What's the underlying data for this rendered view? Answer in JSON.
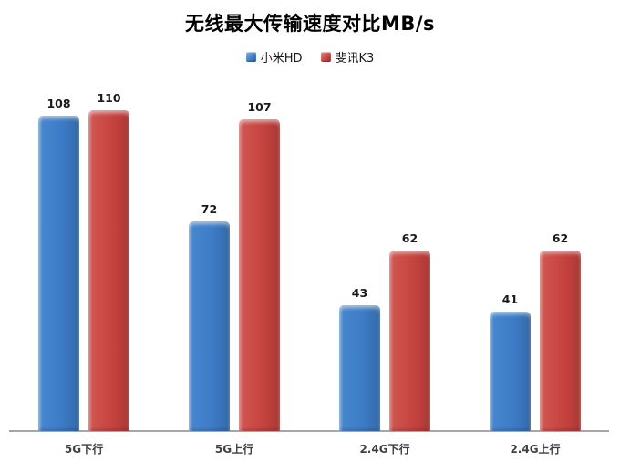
{
  "title": "无线最大传输速度对比MB/s",
  "chart_data": {
    "type": "bar",
    "title": "无线最大传输速度对比MB/s",
    "categories": [
      "5G下行",
      "5G上行",
      "2.4G下行",
      "2.4G上行"
    ],
    "series": [
      {
        "name": "小米HD",
        "color": "#3e7cc7",
        "values": [
          108,
          72,
          43,
          41
        ]
      },
      {
        "name": "斐讯K3",
        "color": "#c64440",
        "values": [
          110,
          107,
          62,
          62
        ]
      }
    ],
    "xlabel": "",
    "ylabel": "",
    "ylim": [
      0,
      120
    ],
    "grid": false,
    "y_axis_visible": false,
    "legend_position": "top",
    "data_labels": true
  },
  "colors": {
    "series_blue": "#3e7cc7",
    "series_red": "#c64440",
    "axis_line": "#a6a6a6",
    "category_text": "#404040",
    "value_text": "#1a1a1a",
    "background": "#ffffff"
  }
}
